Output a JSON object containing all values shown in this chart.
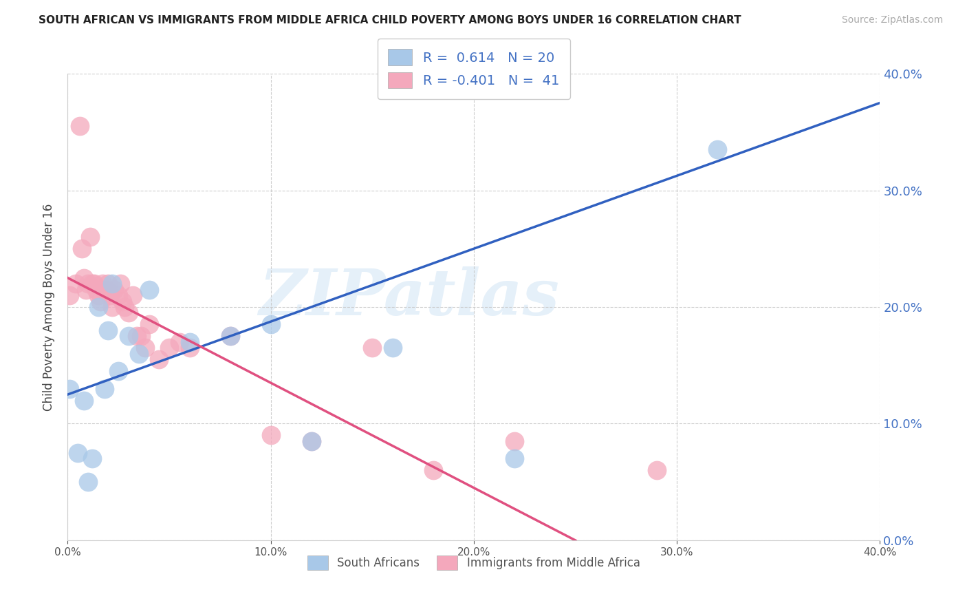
{
  "title": "SOUTH AFRICAN VS IMMIGRANTS FROM MIDDLE AFRICA CHILD POVERTY AMONG BOYS UNDER 16 CORRELATION CHART",
  "source": "Source: ZipAtlas.com",
  "ylabel": "Child Poverty Among Boys Under 16",
  "xlim": [
    0.0,
    0.4
  ],
  "ylim": [
    0.0,
    0.4
  ],
  "x_ticks": [
    0.0,
    0.1,
    0.2,
    0.3,
    0.4
  ],
  "y_ticks": [
    0.0,
    0.1,
    0.2,
    0.3,
    0.4
  ],
  "blue_R": "0.614",
  "blue_N": "20",
  "pink_R": "-0.401",
  "pink_N": "41",
  "blue_scatter_color": "#a8c8e8",
  "pink_scatter_color": "#f4a8bc",
  "blue_line_color": "#3060c0",
  "pink_line_color": "#e05080",
  "watermark_text": "ZIPatlas",
  "south_africans_x": [
    0.001,
    0.005,
    0.008,
    0.01,
    0.012,
    0.015,
    0.018,
    0.02,
    0.022,
    0.025,
    0.03,
    0.035,
    0.04,
    0.06,
    0.08,
    0.1,
    0.12,
    0.16,
    0.22,
    0.32
  ],
  "south_africans_y": [
    0.13,
    0.075,
    0.12,
    0.05,
    0.07,
    0.2,
    0.13,
    0.18,
    0.22,
    0.145,
    0.175,
    0.16,
    0.215,
    0.17,
    0.175,
    0.185,
    0.085,
    0.165,
    0.07,
    0.335
  ],
  "immigrants_x": [
    0.001,
    0.004,
    0.006,
    0.007,
    0.008,
    0.009,
    0.01,
    0.011,
    0.012,
    0.013,
    0.014,
    0.015,
    0.016,
    0.017,
    0.018,
    0.019,
    0.02,
    0.021,
    0.022,
    0.023,
    0.025,
    0.026,
    0.027,
    0.028,
    0.03,
    0.032,
    0.034,
    0.036,
    0.038,
    0.04,
    0.045,
    0.05,
    0.055,
    0.06,
    0.08,
    0.1,
    0.12,
    0.15,
    0.18,
    0.22,
    0.29
  ],
  "immigrants_y": [
    0.21,
    0.22,
    0.355,
    0.25,
    0.225,
    0.215,
    0.22,
    0.26,
    0.22,
    0.22,
    0.215,
    0.21,
    0.205,
    0.22,
    0.215,
    0.215,
    0.22,
    0.21,
    0.2,
    0.215,
    0.21,
    0.22,
    0.205,
    0.2,
    0.195,
    0.21,
    0.175,
    0.175,
    0.165,
    0.185,
    0.155,
    0.165,
    0.17,
    0.165,
    0.175,
    0.09,
    0.085,
    0.165,
    0.06,
    0.085,
    0.06
  ],
  "blue_line_x0": 0.0,
  "blue_line_y0": 0.125,
  "blue_line_x1": 0.4,
  "blue_line_y1": 0.375,
  "pink_line_x0": 0.0,
  "pink_line_y0": 0.225,
  "pink_line_x1": 0.25,
  "pink_line_y1": 0.0
}
